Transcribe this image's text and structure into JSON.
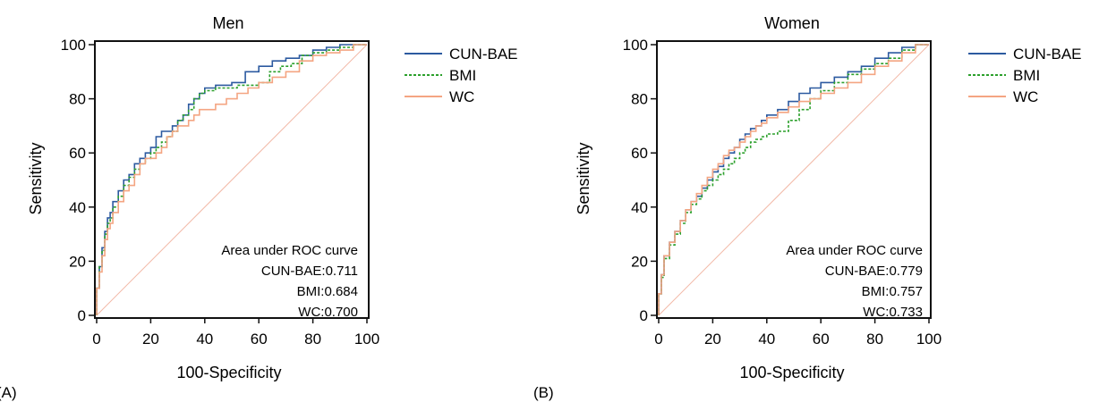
{
  "chart_data": [
    {
      "type": "line",
      "panel_label": "(A)",
      "title": "Men",
      "xlabel": "100-Specificity",
      "ylabel": "Sensitivity",
      "xlim": [
        0,
        100
      ],
      "ylim": [
        0,
        100
      ],
      "x_ticks": [
        "0",
        "20",
        "40",
        "60",
        "80",
        "100"
      ],
      "y_ticks": [
        "0",
        "20",
        "40",
        "60",
        "80",
        "100"
      ],
      "legend_position": "right",
      "reference_line": true,
      "annotation": {
        "heading": "Area under ROC curve",
        "lines": [
          "CUN-BAE:0.711",
          "BMI:0.684",
          "WC:0.700"
        ]
      },
      "series": [
        {
          "name": "CUN-BAE",
          "color": "#2c5aa0",
          "dash": "solid",
          "x": [
            0,
            1,
            2,
            3,
            4,
            5,
            6,
            8,
            10,
            12,
            14,
            16,
            18,
            20,
            22,
            24,
            26,
            28,
            30,
            32,
            34,
            36,
            38,
            40,
            42,
            44,
            46,
            50,
            55,
            60,
            65,
            70,
            75,
            80,
            85,
            90,
            95,
            100
          ],
          "y": [
            0,
            10,
            18,
            25,
            31,
            36,
            38,
            42,
            46,
            50,
            52,
            56,
            58,
            60,
            62,
            66,
            68,
            68,
            70,
            72,
            74,
            78,
            80,
            82,
            84,
            84,
            85,
            85,
            86,
            90,
            92,
            94,
            95,
            96,
            98,
            99,
            100,
            100
          ]
        },
        {
          "name": "BMI",
          "color": "#2ca02c",
          "dash": "dashed",
          "x": [
            0,
            1,
            2,
            3,
            4,
            5,
            6,
            8,
            10,
            12,
            14,
            16,
            18,
            20,
            22,
            24,
            26,
            28,
            30,
            32,
            34,
            36,
            38,
            40,
            44,
            48,
            52,
            56,
            60,
            64,
            68,
            72,
            76,
            80,
            85,
            90,
            95,
            100
          ],
          "y": [
            0,
            10,
            18,
            24,
            30,
            34,
            36,
            40,
            44,
            48,
            51,
            54,
            56,
            58,
            60,
            62,
            64,
            66,
            68,
            72,
            74,
            76,
            80,
            82,
            83,
            84,
            84,
            85,
            85,
            86,
            90,
            92,
            93,
            96,
            97,
            98,
            99,
            100
          ]
        },
        {
          "name": "WC",
          "color": "#f4a582",
          "dash": "solid",
          "x": [
            0,
            1,
            2,
            3,
            4,
            5,
            6,
            8,
            10,
            12,
            14,
            16,
            18,
            20,
            22,
            24,
            26,
            28,
            30,
            32,
            34,
            36,
            38,
            40,
            44,
            48,
            52,
            56,
            60,
            65,
            70,
            75,
            80,
            85,
            90,
            95,
            100
          ],
          "y": [
            0,
            10,
            16,
            22,
            28,
            32,
            34,
            38,
            42,
            46,
            48,
            52,
            56,
            58,
            58,
            60,
            62,
            66,
            68,
            70,
            70,
            72,
            74,
            76,
            76,
            78,
            80,
            82,
            84,
            86,
            88,
            90,
            94,
            96,
            97,
            98,
            100
          ]
        }
      ]
    },
    {
      "type": "line",
      "panel_label": "(B)",
      "title": "Women",
      "xlabel": "100-Specificity",
      "ylabel": "Sensitivity",
      "xlim": [
        0,
        100
      ],
      "ylim": [
        0,
        100
      ],
      "x_ticks": [
        "0",
        "20",
        "40",
        "60",
        "80",
        "100"
      ],
      "y_ticks": [
        "0",
        "20",
        "40",
        "60",
        "80",
        "100"
      ],
      "legend_position": "right",
      "reference_line": true,
      "annotation": {
        "heading": "Area under ROC curve",
        "lines": [
          "CUN-BAE:0.779",
          "BMI:0.757",
          "WC:0.733"
        ]
      },
      "series": [
        {
          "name": "CUN-BAE",
          "color": "#2c5aa0",
          "dash": "solid",
          "x": [
            0,
            1,
            2,
            4,
            6,
            8,
            10,
            12,
            14,
            16,
            18,
            20,
            22,
            24,
            26,
            28,
            30,
            32,
            34,
            36,
            38,
            40,
            44,
            48,
            52,
            56,
            60,
            65,
            70,
            75,
            80,
            85,
            90,
            95,
            100
          ],
          "y": [
            0,
            8,
            15,
            22,
            27,
            31,
            35,
            39,
            42,
            44,
            47,
            50,
            53,
            55,
            58,
            60,
            62,
            65,
            67,
            69,
            70,
            72,
            74,
            76,
            79,
            82,
            84,
            86,
            88,
            90,
            92,
            95,
            97,
            99,
            100
          ]
        },
        {
          "name": "BMI",
          "color": "#2ca02c",
          "dash": "dashed",
          "x": [
            0,
            1,
            2,
            4,
            6,
            8,
            10,
            12,
            14,
            16,
            18,
            20,
            22,
            24,
            26,
            28,
            30,
            32,
            34,
            36,
            38,
            40,
            44,
            48,
            52,
            56,
            60,
            65,
            70,
            75,
            80,
            85,
            90,
            95,
            100
          ],
          "y": [
            0,
            8,
            14,
            21,
            26,
            30,
            34,
            38,
            41,
            43,
            46,
            48,
            50,
            52,
            54,
            56,
            58,
            60,
            62,
            64,
            65,
            66,
            67,
            68,
            72,
            76,
            80,
            83,
            86,
            89,
            91,
            93,
            95,
            98,
            100
          ]
        },
        {
          "name": "WC",
          "color": "#f4a582",
          "dash": "solid",
          "x": [
            0,
            1,
            2,
            4,
            6,
            8,
            10,
            12,
            14,
            16,
            18,
            20,
            22,
            24,
            26,
            28,
            30,
            32,
            34,
            36,
            38,
            40,
            44,
            48,
            52,
            56,
            60,
            65,
            70,
            75,
            80,
            85,
            90,
            95,
            100
          ],
          "y": [
            0,
            8,
            15,
            22,
            27,
            31,
            35,
            39,
            42,
            45,
            48,
            51,
            54,
            56,
            59,
            61,
            62,
            64,
            66,
            68,
            70,
            71,
            73,
            75,
            77,
            79,
            80,
            82,
            84,
            86,
            89,
            92,
            94,
            97,
            100
          ]
        }
      ]
    }
  ]
}
